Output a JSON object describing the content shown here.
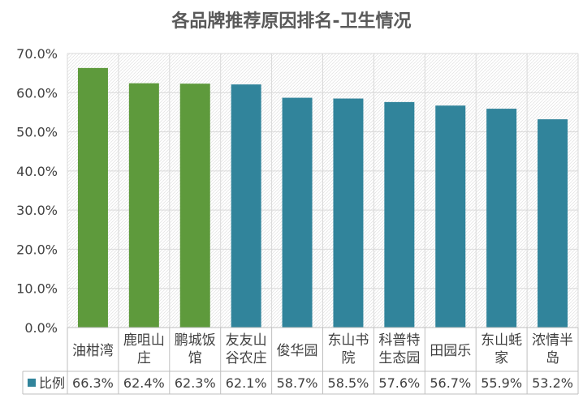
{
  "chart_data": {
    "type": "bar",
    "title": "各品牌推荐原因排名-卫生情况",
    "categories": [
      "油柑湾",
      "鹿咀山庄",
      "鹏城饭馆",
      "友友山谷农庄",
      "俊华园",
      "东山书院",
      "科普特生态园",
      "田园乐",
      "东山蚝家",
      "浓情半岛"
    ],
    "category_lines": [
      [
        "油柑湾"
      ],
      [
        "鹿咀山",
        "庄"
      ],
      [
        "鹏城饭",
        "馆"
      ],
      [
        "友友山",
        "谷农庄"
      ],
      [
        "俊华园"
      ],
      [
        "东山书",
        "院"
      ],
      [
        "科普特",
        "生态园"
      ],
      [
        "田园乐"
      ],
      [
        "东山蚝",
        "家"
      ],
      [
        "浓情半",
        "岛"
      ]
    ],
    "series": [
      {
        "name": "比例",
        "values": [
          66.3,
          62.4,
          62.3,
          62.1,
          58.7,
          58.5,
          57.6,
          56.7,
          55.9,
          53.2
        ]
      }
    ],
    "value_labels": [
      "66.3%",
      "62.4%",
      "62.3%",
      "62.1%",
      "58.7%",
      "58.5%",
      "57.6%",
      "56.7%",
      "55.9%",
      "53.2%"
    ],
    "highlight_count": 3,
    "y_ticks": [
      "0.0%",
      "10.0%",
      "20.0%",
      "30.0%",
      "40.0%",
      "50.0%",
      "60.0%",
      "70.0%"
    ],
    "ylim": [
      0,
      70
    ],
    "grid": true,
    "legend": "data-table",
    "colors": {
      "highlight": "#5E9A3C",
      "default": "#31849B",
      "axis_text": "#404040",
      "grid": "#D9D9D9"
    }
  }
}
